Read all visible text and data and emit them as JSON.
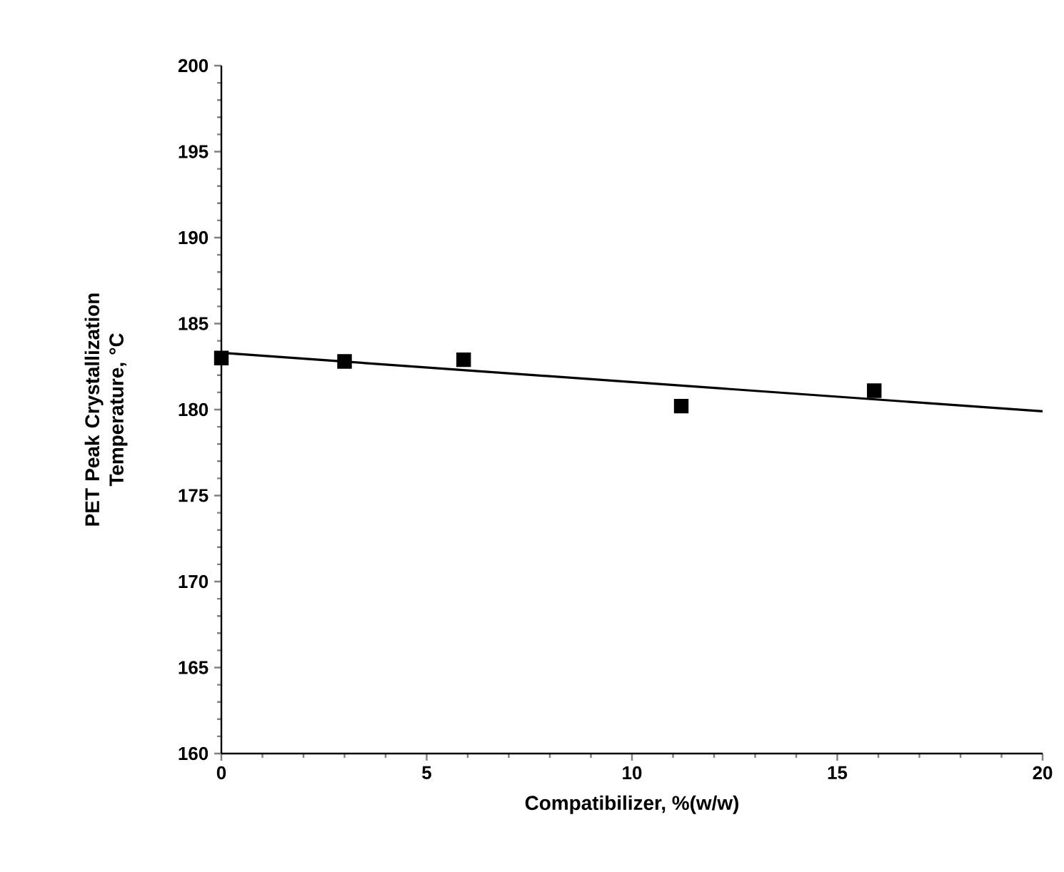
{
  "chart_data": {
    "type": "scatter",
    "xlabel": "Compatibilizer,     %(w/w)",
    "ylabel": "PET  Peak  Crystallization Temperature, °C",
    "series": [
      {
        "x": [
          0,
          3,
          5.9,
          11.2,
          15.9
        ],
        "values": [
          183.0,
          182.8,
          182.9,
          180.2,
          181.1
        ],
        "color": "#000000",
        "marker": "square"
      },
      {
        "type": "line",
        "x": [
          0,
          20
        ],
        "values": [
          183.3,
          179.9
        ],
        "color": "#000000",
        "marker": "none",
        "line_style": "solid"
      }
    ],
    "xlim": [
      0,
      20
    ],
    "ylim": [
      160,
      200
    ],
    "xticks": [
      0,
      5,
      10,
      15,
      20
    ],
    "yticks": [
      160,
      165,
      170,
      175,
      180,
      185,
      190,
      195,
      200
    ],
    "grid": false
  }
}
